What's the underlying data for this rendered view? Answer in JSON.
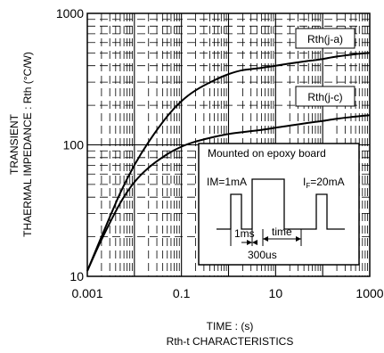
{
  "chart_data": {
    "type": "line",
    "xlabel": "TIME : (s)",
    "caption": "Rth-t CHARACTERISTICS",
    "ylabel_line1": "TRANSIENT",
    "ylabel_line2": "THAERMAL IMPEDANCE : Rth (°C/W)",
    "x_scale": "log",
    "y_scale": "log",
    "xlim": [
      0.001,
      1000
    ],
    "ylim": [
      10,
      1000
    ],
    "x_ticks": [
      {
        "value": 0.001,
        "label": "0.001"
      },
      {
        "value": 0.1,
        "label": "0.1"
      },
      {
        "value": 10,
        "label": "10"
      },
      {
        "value": 1000,
        "label": "1000"
      }
    ],
    "y_ticks": [
      {
        "value": 10,
        "label": "10"
      },
      {
        "value": 100,
        "label": "100"
      },
      {
        "value": 1000,
        "label": "1000"
      }
    ],
    "grid": true,
    "series": [
      {
        "name": "Rth(j-a)",
        "x": [
          0.001,
          0.002,
          0.005,
          0.01,
          0.02,
          0.05,
          0.1,
          0.2,
          0.5,
          1,
          2,
          5,
          10,
          20,
          50,
          100,
          200,
          500,
          1000
        ],
        "y": [
          11,
          20,
          43,
          70,
          105,
          165,
          215,
          260,
          310,
          345,
          370,
          385,
          400,
          415,
          435,
          450,
          470,
          490,
          500
        ]
      },
      {
        "name": "Rth(j-c)",
        "x": [
          0.001,
          0.002,
          0.005,
          0.01,
          0.02,
          0.05,
          0.1,
          0.2,
          0.5,
          1,
          2,
          5,
          10,
          20,
          50,
          100,
          200,
          500,
          1000
        ],
        "y": [
          11,
          19,
          36,
          52,
          67,
          85,
          97,
          106,
          115,
          121,
          125,
          130,
          135,
          140,
          147,
          152,
          158,
          164,
          168
        ]
      }
    ],
    "inset": {
      "title": "Mounted on epoxy board",
      "im_label": "IM=1mA",
      "if_label_main": "I",
      "if_label_sub": "F",
      "if_label_value": "=20mA",
      "pulse_width_label": "1ms",
      "time_label": "time",
      "period_label": "300us"
    }
  }
}
